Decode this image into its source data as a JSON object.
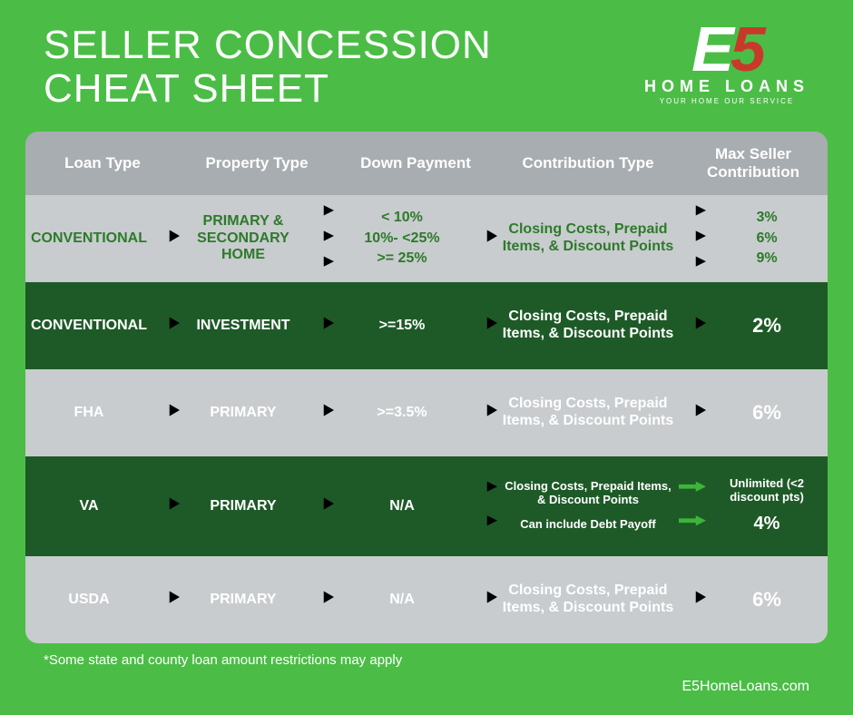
{
  "title": "SELLER CONCESSION\nCHEAT SHEET",
  "logo": {
    "text": "E5",
    "sub": "HOME LOANS",
    "tag": "YOUR HOME  OUR SERVICE"
  },
  "colors": {
    "background": "#4bbd46",
    "row_light": "#c8ccce",
    "row_dark": "#1e5a27",
    "header_gray": "#a7adb0",
    "arrow_green": "#3db53a",
    "text_green_dark": "#2d7a2a",
    "white": "#ffffff",
    "e5_red": "#c73a2a"
  },
  "columns": [
    "Loan Type",
    "Property Type",
    "Down Payment",
    "Contribution Type",
    "Max Seller Contribution"
  ],
  "rows": [
    {
      "style": "light",
      "loan_type": "CONVENTIONAL",
      "property_type": "PRIMARY & SECONDARY HOME",
      "down_payment": [
        "< 10%",
        "10%- <25%",
        ">= 25%"
      ],
      "contribution": "Closing Costs, Prepaid Items, & Discount Points",
      "max": [
        "3%",
        "6%",
        "9%"
      ],
      "arrow_after_property": "triple",
      "arrow_after_contribution": "triple"
    },
    {
      "style": "dark",
      "loan_type": "CONVENTIONAL",
      "property_type": "INVESTMENT",
      "down_payment": ">=15%",
      "contribution": "Closing Costs, Prepaid Items, & Discount Points",
      "max": "2%"
    },
    {
      "style": "light_muted",
      "loan_type": "FHA",
      "property_type": "PRIMARY",
      "down_payment": ">=3.5%",
      "contribution": "Closing Costs, Prepaid Items, & Discount Points",
      "max": "6%"
    },
    {
      "style": "dark",
      "loan_type": "VA",
      "property_type": "PRIMARY",
      "down_payment": "N/A",
      "contribution": [
        "Closing Costs, Prepaid Items, & Discount Points",
        "Can include Debt Payoff"
      ],
      "max": [
        "Unlimited (<2 discount pts)",
        "4%"
      ],
      "arrow_after_down": "double",
      "arrow_after_contribution": "double_straight"
    },
    {
      "style": "light_muted",
      "loan_type": "USDA",
      "property_type": "PRIMARY",
      "down_payment": "N/A",
      "contribution": "Closing Costs, Prepaid Items, & Discount Points",
      "max": "6%"
    }
  ],
  "footnote": "*Some state and county loan amount restrictions may apply",
  "url": "E5HomeLoans.com"
}
